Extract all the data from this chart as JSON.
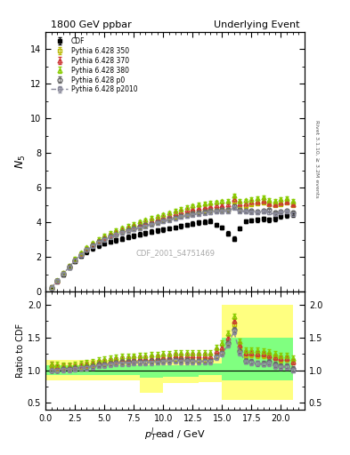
{
  "title_left": "1800 GeV ppbar",
  "title_right": "Underlying Event",
  "ylabel_main": "$N_5$",
  "ylabel_ratio": "Ratio to CDF",
  "xlabel": "$p_T^l\\mathrm{ead}$ / GeV",
  "watermark": "CDF_2001_S4751469",
  "right_label": "Rivet 3.1.10, ≥ 3.2M events",
  "xlim": [
    0,
    22
  ],
  "ylim_main": [
    0,
    15
  ],
  "ylim_ratio": [
    0.4,
    2.2
  ],
  "yticks_main": [
    0,
    2,
    4,
    6,
    8,
    10,
    12,
    14
  ],
  "yticks_ratio": [
    0.5,
    1.0,
    1.5,
    2.0
  ],
  "cdf_x": [
    0.5,
    1.0,
    1.5,
    2.0,
    2.5,
    3.0,
    3.5,
    4.0,
    4.5,
    5.0,
    5.5,
    6.0,
    6.5,
    7.0,
    7.5,
    8.0,
    8.5,
    9.0,
    9.5,
    10.0,
    10.5,
    11.0,
    11.5,
    12.0,
    12.5,
    13.0,
    13.5,
    14.0,
    14.5,
    15.0,
    15.5,
    16.0,
    16.5,
    17.0,
    17.5,
    18.0,
    18.5,
    19.0,
    19.5,
    20.0,
    20.5,
    21.0
  ],
  "cdf_y": [
    0.22,
    0.6,
    1.0,
    1.4,
    1.75,
    2.05,
    2.3,
    2.5,
    2.65,
    2.78,
    2.88,
    2.96,
    3.05,
    3.15,
    3.22,
    3.3,
    3.38,
    3.45,
    3.52,
    3.58,
    3.64,
    3.7,
    3.78,
    3.85,
    3.92,
    3.98,
    4.02,
    4.07,
    3.85,
    3.7,
    3.35,
    3.05,
    3.65,
    4.05,
    4.1,
    4.15,
    4.2,
    4.15,
    4.2,
    4.35,
    4.4,
    4.45
  ],
  "p350_x": [
    0.5,
    1.0,
    1.5,
    2.0,
    2.5,
    3.0,
    3.5,
    4.0,
    4.5,
    5.0,
    5.5,
    6.0,
    6.5,
    7.0,
    7.5,
    8.0,
    8.5,
    9.0,
    9.5,
    10.0,
    10.5,
    11.0,
    11.5,
    12.0,
    12.5,
    13.0,
    13.5,
    14.0,
    14.5,
    15.0,
    15.5,
    16.0,
    16.5,
    17.0,
    17.5,
    18.0,
    18.5,
    19.0,
    19.5,
    20.0,
    20.5,
    21.0
  ],
  "p350_y": [
    0.23,
    0.62,
    1.05,
    1.45,
    1.82,
    2.15,
    2.43,
    2.68,
    2.88,
    3.05,
    3.18,
    3.3,
    3.42,
    3.52,
    3.62,
    3.72,
    3.82,
    3.92,
    4.02,
    4.12,
    4.22,
    4.32,
    4.4,
    4.48,
    4.55,
    4.6,
    4.65,
    4.68,
    4.7,
    4.72,
    4.74,
    5.2,
    4.85,
    4.95,
    5.05,
    5.1,
    5.15,
    5.05,
    5.0,
    5.05,
    5.15,
    5.0
  ],
  "p370_x": [
    0.5,
    1.0,
    1.5,
    2.0,
    2.5,
    3.0,
    3.5,
    4.0,
    4.5,
    5.0,
    5.5,
    6.0,
    6.5,
    7.0,
    7.5,
    8.0,
    8.5,
    9.0,
    9.5,
    10.0,
    10.5,
    11.0,
    11.5,
    12.0,
    12.5,
    13.0,
    13.5,
    14.0,
    14.5,
    15.0,
    15.5,
    16.0,
    16.5,
    17.0,
    17.5,
    18.0,
    18.5,
    19.0,
    19.5,
    20.0,
    20.5,
    21.0
  ],
  "p370_y": [
    0.24,
    0.63,
    1.06,
    1.48,
    1.86,
    2.2,
    2.5,
    2.75,
    2.97,
    3.15,
    3.3,
    3.44,
    3.57,
    3.68,
    3.78,
    3.9,
    4.0,
    4.1,
    4.2,
    4.3,
    4.4,
    4.52,
    4.6,
    4.7,
    4.78,
    4.85,
    4.9,
    4.95,
    4.98,
    5.0,
    5.02,
    5.35,
    5.08,
    5.1,
    5.18,
    5.2,
    5.25,
    5.1,
    5.05,
    5.15,
    5.2,
    5.05
  ],
  "p380_x": [
    0.5,
    1.0,
    1.5,
    2.0,
    2.5,
    3.0,
    3.5,
    4.0,
    4.5,
    5.0,
    5.5,
    6.0,
    6.5,
    7.0,
    7.5,
    8.0,
    8.5,
    9.0,
    9.5,
    10.0,
    10.5,
    11.0,
    11.5,
    12.0,
    12.5,
    13.0,
    13.5,
    14.0,
    14.5,
    15.0,
    15.5,
    16.0,
    16.5,
    17.0,
    17.5,
    18.0,
    18.5,
    19.0,
    19.5,
    20.0,
    20.5,
    21.0
  ],
  "p380_y": [
    0.24,
    0.65,
    1.08,
    1.5,
    1.9,
    2.25,
    2.56,
    2.82,
    3.05,
    3.24,
    3.4,
    3.55,
    3.68,
    3.8,
    3.92,
    4.04,
    4.15,
    4.26,
    4.36,
    4.46,
    4.56,
    4.68,
    4.78,
    4.88,
    4.96,
    5.04,
    5.1,
    5.15,
    5.18,
    5.22,
    5.25,
    5.55,
    5.25,
    5.28,
    5.35,
    5.4,
    5.45,
    5.3,
    5.25,
    5.35,
    5.4,
    5.25
  ],
  "pp0_x": [
    0.5,
    1.0,
    1.5,
    2.0,
    2.5,
    3.0,
    3.5,
    4.0,
    4.5,
    5.0,
    5.5,
    6.0,
    6.5,
    7.0,
    7.5,
    8.0,
    8.5,
    9.0,
    9.5,
    10.0,
    10.5,
    11.0,
    11.5,
    12.0,
    12.5,
    13.0,
    13.5,
    14.0,
    14.5,
    15.0,
    15.5,
    16.0,
    16.5,
    17.0,
    17.5,
    18.0,
    18.5,
    19.0,
    19.5,
    20.0,
    20.5,
    21.0
  ],
  "pp0_y": [
    0.22,
    0.6,
    1.02,
    1.42,
    1.8,
    2.13,
    2.42,
    2.66,
    2.87,
    3.04,
    3.18,
    3.31,
    3.43,
    3.54,
    3.63,
    3.73,
    3.83,
    3.92,
    4.01,
    4.1,
    4.19,
    4.28,
    4.36,
    4.43,
    4.5,
    4.56,
    4.61,
    4.65,
    4.68,
    4.7,
    4.72,
    4.95,
    4.72,
    4.65,
    4.65,
    4.6,
    4.65,
    4.7,
    4.55,
    4.6,
    4.65,
    4.55
  ],
  "pp2010_x": [
    0.5,
    1.0,
    1.5,
    2.0,
    2.5,
    3.0,
    3.5,
    4.0,
    4.5,
    5.0,
    5.5,
    6.0,
    6.5,
    7.0,
    7.5,
    8.0,
    8.5,
    9.0,
    9.5,
    10.0,
    10.5,
    11.0,
    11.5,
    12.0,
    12.5,
    13.0,
    13.5,
    14.0,
    14.5,
    15.0,
    15.5,
    16.0,
    16.5,
    17.0,
    17.5,
    18.0,
    18.5,
    19.0,
    19.5,
    20.0,
    20.5,
    21.0
  ],
  "pp2010_y": [
    0.22,
    0.6,
    1.01,
    1.41,
    1.78,
    2.11,
    2.39,
    2.63,
    2.83,
    3.0,
    3.14,
    3.27,
    3.38,
    3.49,
    3.58,
    3.67,
    3.77,
    3.86,
    3.95,
    4.04,
    4.12,
    4.21,
    4.29,
    4.36,
    4.43,
    4.48,
    4.53,
    4.57,
    4.6,
    4.62,
    4.63,
    4.85,
    4.63,
    4.6,
    4.58,
    4.55,
    4.6,
    4.55,
    4.45,
    4.55,
    4.6,
    4.45
  ],
  "color_350": "#b8b800",
  "color_370": "#cc3333",
  "color_380": "#88cc00",
  "color_p0": "#666666",
  "color_p2010": "#888899",
  "color_cdf": "#000000",
  "band_yellow": "#ffff80",
  "band_green": "#80ff80",
  "ratio_band_yellow_x": [
    0,
    1,
    2,
    3,
    4,
    5,
    6,
    7,
    8,
    9,
    10,
    11,
    12,
    13,
    14,
    15,
    16,
    17,
    18,
    19,
    20,
    21
  ],
  "ratio_band_yellow_lo": [
    0.85,
    0.85,
    0.85,
    0.85,
    0.85,
    0.85,
    0.85,
    0.85,
    0.65,
    0.65,
    0.8,
    0.8,
    0.8,
    0.82,
    0.82,
    0.55,
    0.55,
    0.55,
    0.55,
    0.55,
    0.55,
    0.55
  ],
  "ratio_band_yellow_hi": [
    1.15,
    1.15,
    1.15,
    1.15,
    1.15,
    1.15,
    1.15,
    1.15,
    1.15,
    1.15,
    1.15,
    1.15,
    1.15,
    1.18,
    1.18,
    2.0,
    2.0,
    2.0,
    2.0,
    2.0,
    2.0,
    2.0
  ],
  "ratio_band_green_x": [
    0,
    1,
    2,
    3,
    4,
    5,
    6,
    7,
    8,
    9,
    10,
    11,
    12,
    13,
    14,
    15,
    16,
    17,
    18,
    19,
    20,
    21
  ],
  "ratio_band_green_lo": [
    0.92,
    0.92,
    0.92,
    0.92,
    0.92,
    0.92,
    0.92,
    0.92,
    0.88,
    0.88,
    0.9,
    0.9,
    0.9,
    0.92,
    0.92,
    0.85,
    0.85,
    0.85,
    0.85,
    0.85,
    0.85,
    0.85
  ],
  "ratio_band_green_hi": [
    1.08,
    1.08,
    1.08,
    1.08,
    1.08,
    1.08,
    1.08,
    1.08,
    1.08,
    1.08,
    1.08,
    1.08,
    1.08,
    1.1,
    1.1,
    1.5,
    1.5,
    1.5,
    1.5,
    1.5,
    1.5,
    1.5
  ]
}
